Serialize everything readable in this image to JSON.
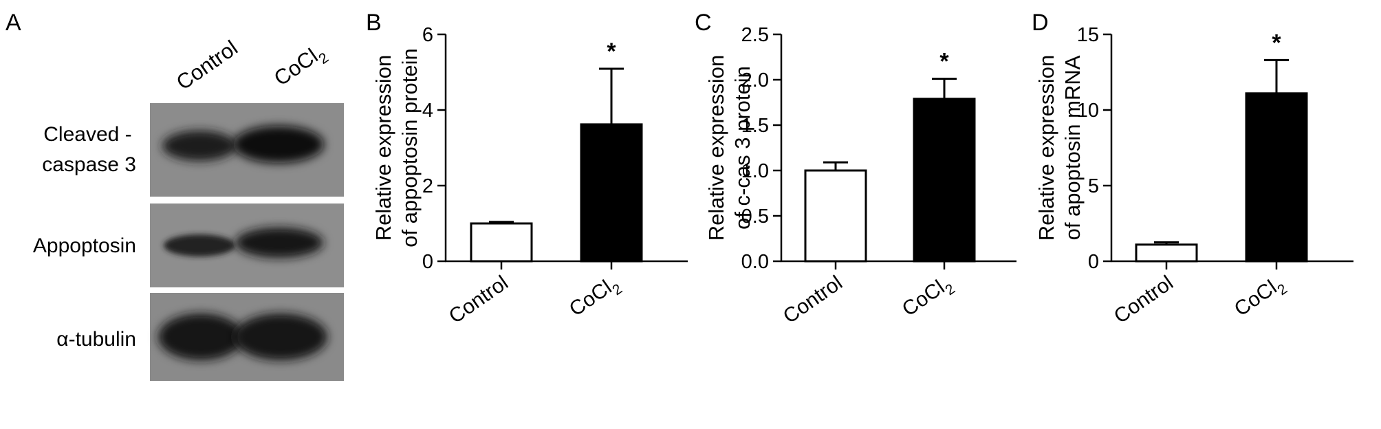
{
  "panels": [
    {
      "id": "A",
      "letter": "A"
    },
    {
      "id": "B",
      "letter": "B"
    },
    {
      "id": "C",
      "letter": "C"
    },
    {
      "id": "D",
      "letter": "D"
    }
  ],
  "western_blot": {
    "lane_labels": [
      {
        "text": "Control",
        "sub": ""
      },
      {
        "text": "CoCl",
        "sub": "2"
      }
    ],
    "rows": [
      {
        "label_lines": [
          "Cleaved -",
          "caspase 3"
        ]
      },
      {
        "label_lines": [
          "Appoptosin"
        ]
      },
      {
        "label_lines": [
          "α-tubulin"
        ]
      }
    ]
  },
  "chart_data": [
    {
      "type": "bar",
      "panel": "B",
      "categories": [
        "Control",
        "CoCl2"
      ],
      "values": [
        1.0,
        3.62
      ],
      "errors": [
        0.04,
        1.47
      ],
      "significance": [
        "",
        "*"
      ],
      "ylabel": [
        "Relative expression",
        "of appoptosin protein"
      ],
      "ylim": [
        0,
        6
      ],
      "yticks": [
        "0",
        "2",
        "4",
        "6"
      ],
      "bar_colors": [
        "#ffffff",
        "#000000"
      ]
    },
    {
      "type": "bar",
      "panel": "C",
      "categories": [
        "Control",
        "CoCl2"
      ],
      "values": [
        1.0,
        1.79
      ],
      "errors": [
        0.09,
        0.22
      ],
      "significance": [
        "",
        "*"
      ],
      "ylabel": [
        "Relative expression",
        "of c-cas 3 protein"
      ],
      "ylim": [
        0,
        2.5
      ],
      "yticks": [
        "0.0",
        "0.5",
        "1.0",
        "1.5",
        "2.0",
        "2.5"
      ],
      "bar_colors": [
        "#ffffff",
        "#000000"
      ]
    },
    {
      "type": "bar",
      "panel": "D",
      "categories": [
        "Control",
        "CoCl2"
      ],
      "values": [
        1.1,
        11.1
      ],
      "errors": [
        0.15,
        2.2
      ],
      "significance": [
        "",
        "*"
      ],
      "ylabel": [
        "Relative expression",
        "of apoptosin mRNA"
      ],
      "ylim": [
        0,
        15
      ],
      "yticks": [
        "0",
        "5",
        "10",
        "15"
      ],
      "bar_colors": [
        "#ffffff",
        "#000000"
      ]
    }
  ]
}
